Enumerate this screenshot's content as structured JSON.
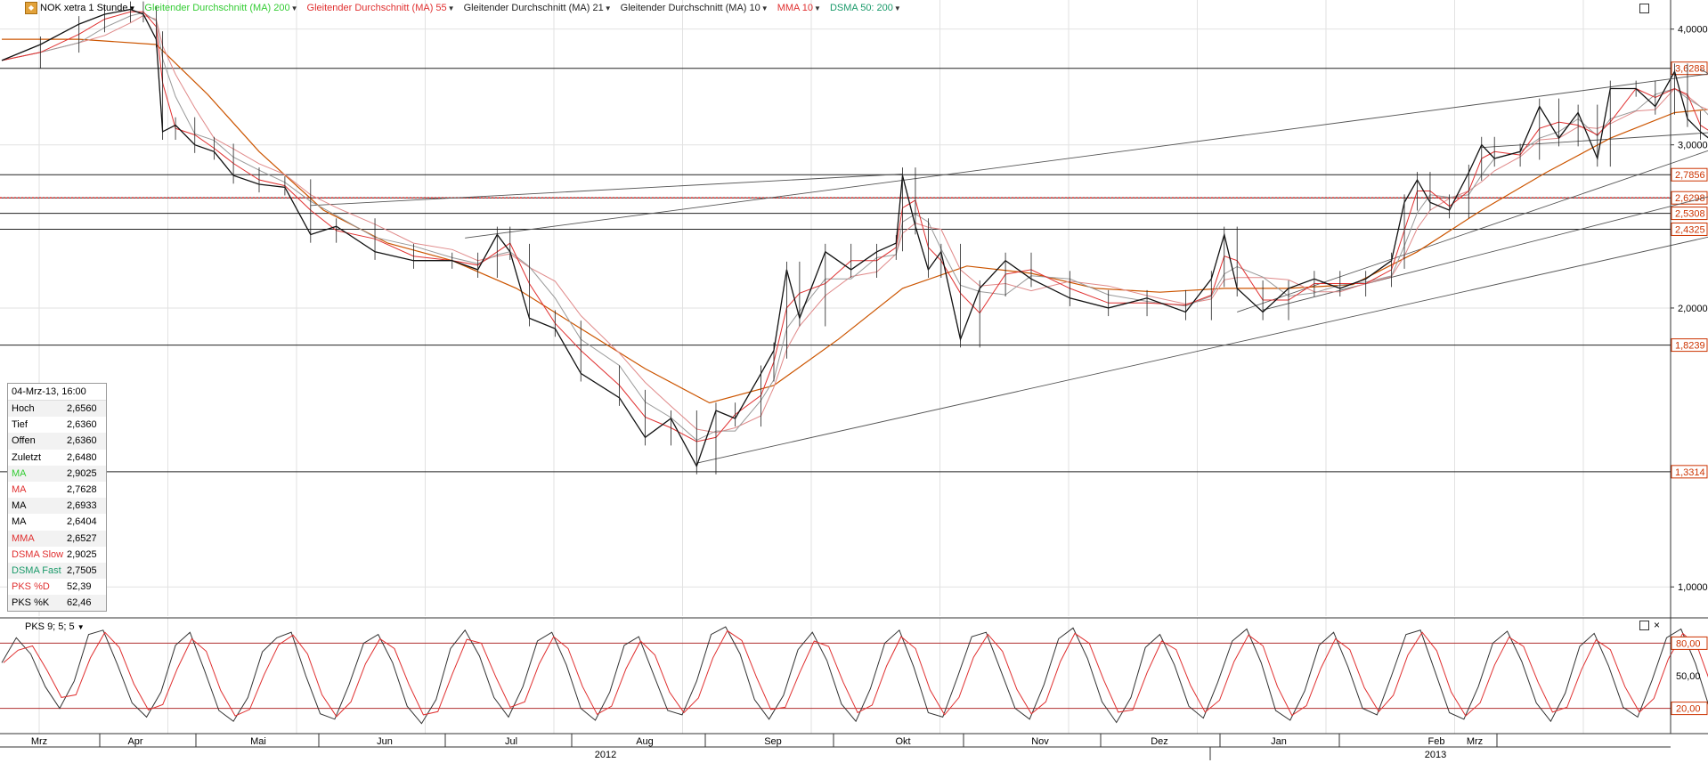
{
  "header": {
    "symbol": "NOK",
    "symbol_suffix": "xetra 1 Stunde",
    "indicators": [
      {
        "label": "Gleitender Durchschnitt (MA) 200",
        "color": "#33cc33"
      },
      {
        "label": "Gleitender Durchschnitt (MA) 55",
        "color": "#e03030"
      },
      {
        "label": "Gleitender Durchschnitt (MA) 21",
        "color": "#222222"
      },
      {
        "label": "Gleitender Durchschnitt (MA) 10",
        "color": "#222222"
      },
      {
        "label": "MMA 10",
        "color": "#e03030"
      },
      {
        "label": "DSMA 50: 200",
        "color": "#1a9a6a"
      }
    ]
  },
  "info_box": {
    "datetime": "04-Mrz-13, 16:00",
    "rows": [
      {
        "label": "Hoch",
        "value": "2,6560",
        "color": "#000000"
      },
      {
        "label": "Tief",
        "value": "2,6360",
        "color": "#000000"
      },
      {
        "label": "Offen",
        "value": "2,6360",
        "color": "#000000"
      },
      {
        "label": "Zuletzt",
        "value": "2,6480",
        "color": "#000000"
      },
      {
        "label": "MA",
        "value": "2,9025",
        "color": "#33cc33"
      },
      {
        "label": "MA",
        "value": "2,7628",
        "color": "#e03030"
      },
      {
        "label": "MA",
        "value": "2,6933",
        "color": "#000000"
      },
      {
        "label": "MA",
        "value": "2,6404",
        "color": "#000000"
      },
      {
        "label": "MMA",
        "value": "2,6527",
        "color": "#e03030"
      },
      {
        "label": "DSMA Slow",
        "value": "2,9025",
        "color": "#e03030"
      },
      {
        "label": "DSMA Fast",
        "value": "2,7505",
        "color": "#1a9a6a"
      },
      {
        "label": "PKS %D",
        "value": "52,39",
        "color": "#e03030"
      },
      {
        "label": "PKS %K",
        "value": "62,46",
        "color": "#000000"
      }
    ]
  },
  "pks_label": "PKS 9; 5; 5",
  "chart_data": [
    {
      "type": "line",
      "scale": "log",
      "y_ticks": [
        "4,0000",
        "3,0000",
        "2,0000",
        "1,0000"
      ],
      "y_tick_values": [
        4.0,
        3.0,
        2.0,
        1.0
      ],
      "ylim": [
        0.93,
        4.3
      ],
      "horizontal_levels": [
        {
          "label": "3,6288",
          "value": 3.6288
        },
        {
          "label": "2,7856",
          "value": 2.7856
        },
        {
          "label": "2,6298",
          "value": 2.6298
        },
        {
          "label": "2,5308",
          "value": 2.5308
        },
        {
          "label": "2,4325",
          "value": 2.4325
        },
        {
          "label": "1,8239",
          "value": 1.8239
        },
        {
          "label": "1,3314",
          "value": 1.3314
        }
      ],
      "current_price_level": 2.63,
      "x_labels": [
        "Mrz",
        "Apr",
        "Mai",
        "Jun",
        "Jul",
        "Aug",
        "Sep",
        "Okt",
        "Nov",
        "Dez",
        "Jan",
        "Feb",
        "Mrz"
      ],
      "year_labels": [
        "2012",
        "2013"
      ],
      "price_series": [
        {
          "x": 0.0,
          "y": 3.7
        },
        {
          "x": 0.3,
          "y": 3.85
        },
        {
          "x": 0.6,
          "y": 4.05
        },
        {
          "x": 0.8,
          "y": 4.15
        },
        {
          "x": 1.0,
          "y": 4.2
        },
        {
          "x": 1.1,
          "y": 4.15
        },
        {
          "x": 1.2,
          "y": 3.9
        },
        {
          "x": 1.25,
          "y": 3.1
        },
        {
          "x": 1.35,
          "y": 3.15
        },
        {
          "x": 1.5,
          "y": 3.0
        },
        {
          "x": 1.65,
          "y": 2.95
        },
        {
          "x": 1.8,
          "y": 2.78
        },
        {
          "x": 2.0,
          "y": 2.72
        },
        {
          "x": 2.2,
          "y": 2.7
        },
        {
          "x": 2.4,
          "y": 2.4
        },
        {
          "x": 2.6,
          "y": 2.45
        },
        {
          "x": 2.9,
          "y": 2.3
        },
        {
          "x": 3.2,
          "y": 2.25
        },
        {
          "x": 3.5,
          "y": 2.25
        },
        {
          "x": 3.7,
          "y": 2.2
        },
        {
          "x": 3.85,
          "y": 2.4
        },
        {
          "x": 3.95,
          "y": 2.3
        },
        {
          "x": 4.1,
          "y": 1.95
        },
        {
          "x": 4.3,
          "y": 1.9
        },
        {
          "x": 4.5,
          "y": 1.7
        },
        {
          "x": 4.8,
          "y": 1.6
        },
        {
          "x": 5.0,
          "y": 1.45
        },
        {
          "x": 5.2,
          "y": 1.52
        },
        {
          "x": 5.4,
          "y": 1.35
        },
        {
          "x": 5.55,
          "y": 1.55
        },
        {
          "x": 5.7,
          "y": 1.52
        },
        {
          "x": 5.9,
          "y": 1.7
        },
        {
          "x": 6.0,
          "y": 1.8
        },
        {
          "x": 6.1,
          "y": 2.2
        },
        {
          "x": 6.2,
          "y": 1.95
        },
        {
          "x": 6.4,
          "y": 2.3
        },
        {
          "x": 6.6,
          "y": 2.2
        },
        {
          "x": 6.8,
          "y": 2.3
        },
        {
          "x": 6.95,
          "y": 2.35
        },
        {
          "x": 7.0,
          "y": 2.78
        },
        {
          "x": 7.1,
          "y": 2.45
        },
        {
          "x": 7.2,
          "y": 2.2
        },
        {
          "x": 7.3,
          "y": 2.3
        },
        {
          "x": 7.45,
          "y": 1.85
        },
        {
          "x": 7.6,
          "y": 2.1
        },
        {
          "x": 7.8,
          "y": 2.25
        },
        {
          "x": 8.0,
          "y": 2.15
        },
        {
          "x": 8.3,
          "y": 2.05
        },
        {
          "x": 8.6,
          "y": 2.0
        },
        {
          "x": 8.9,
          "y": 2.05
        },
        {
          "x": 9.2,
          "y": 1.98
        },
        {
          "x": 9.4,
          "y": 2.15
        },
        {
          "x": 9.5,
          "y": 2.4
        },
        {
          "x": 9.6,
          "y": 2.1
        },
        {
          "x": 9.8,
          "y": 1.98
        },
        {
          "x": 10.0,
          "y": 2.1
        },
        {
          "x": 10.2,
          "y": 2.15
        },
        {
          "x": 10.4,
          "y": 2.1
        },
        {
          "x": 10.6,
          "y": 2.15
        },
        {
          "x": 10.8,
          "y": 2.25
        },
        {
          "x": 10.9,
          "y": 2.6
        },
        {
          "x": 11.0,
          "y": 2.75
        },
        {
          "x": 11.1,
          "y": 2.6
        },
        {
          "x": 11.25,
          "y": 2.55
        },
        {
          "x": 11.4,
          "y": 2.8
        },
        {
          "x": 11.5,
          "y": 3.0
        },
        {
          "x": 11.6,
          "y": 2.9
        },
        {
          "x": 11.8,
          "y": 2.95
        },
        {
          "x": 11.95,
          "y": 3.3
        },
        {
          "x": 12.1,
          "y": 3.05
        },
        {
          "x": 12.25,
          "y": 3.25
        },
        {
          "x": 12.4,
          "y": 2.9
        },
        {
          "x": 12.5,
          "y": 3.45
        },
        {
          "x": 12.7,
          "y": 3.45
        },
        {
          "x": 12.85,
          "y": 3.3
        },
        {
          "x": 13.0,
          "y": 3.6
        },
        {
          "x": 13.1,
          "y": 3.2
        },
        {
          "x": 13.2,
          "y": 3.1
        },
        {
          "x": 13.4,
          "y": 2.95
        },
        {
          "x": 13.6,
          "y": 3.05
        },
        {
          "x": 13.75,
          "y": 2.85
        },
        {
          "x": 13.9,
          "y": 3.1
        },
        {
          "x": 14.1,
          "y": 2.95
        },
        {
          "x": 14.25,
          "y": 2.85
        },
        {
          "x": 14.4,
          "y": 2.75
        },
        {
          "x": 14.55,
          "y": 2.8
        },
        {
          "x": 14.65,
          "y": 2.65
        },
        {
          "x": 14.75,
          "y": 2.7
        },
        {
          "x": 14.82,
          "y": 2.58
        },
        {
          "x": 14.85,
          "y": 2.64
        }
      ],
      "ma_series": [
        {
          "name": "MA 200",
          "color": "#cc5500",
          "points": [
            {
              "x": 0.0,
              "y": 3.9
            },
            {
              "x": 0.6,
              "y": 3.9
            },
            {
              "x": 1.2,
              "y": 3.85
            },
            {
              "x": 1.6,
              "y": 3.4
            },
            {
              "x": 2.0,
              "y": 2.95
            },
            {
              "x": 2.5,
              "y": 2.55
            },
            {
              "x": 3.0,
              "y": 2.35
            },
            {
              "x": 3.5,
              "y": 2.25
            },
            {
              "x": 4.0,
              "y": 2.1
            },
            {
              "x": 4.5,
              "y": 1.9
            },
            {
              "x": 5.0,
              "y": 1.72
            },
            {
              "x": 5.5,
              "y": 1.58
            },
            {
              "x": 6.0,
              "y": 1.65
            },
            {
              "x": 6.5,
              "y": 1.85
            },
            {
              "x": 7.0,
              "y": 2.1
            },
            {
              "x": 7.5,
              "y": 2.22
            },
            {
              "x": 8.0,
              "y": 2.18
            },
            {
              "x": 8.5,
              "y": 2.1
            },
            {
              "x": 9.0,
              "y": 2.08
            },
            {
              "x": 9.5,
              "y": 2.1
            },
            {
              "x": 10.0,
              "y": 2.1
            },
            {
              "x": 10.5,
              "y": 2.12
            },
            {
              "x": 11.0,
              "y": 2.3
            },
            {
              "x": 11.5,
              "y": 2.55
            },
            {
              "x": 12.0,
              "y": 2.8
            },
            {
              "x": 12.5,
              "y": 3.05
            },
            {
              "x": 13.0,
              "y": 3.25
            },
            {
              "x": 13.5,
              "y": 3.3
            },
            {
              "x": 14.0,
              "y": 3.2
            },
            {
              "x": 14.5,
              "y": 3.05
            },
            {
              "x": 14.85,
              "y": 2.92
            }
          ]
        }
      ],
      "trend_lines": [
        {
          "from": {
            "x": 2.4,
            "y": 2.58
          },
          "to": {
            "x": 7.0,
            "y": 2.79
          }
        },
        {
          "from": {
            "x": 3.6,
            "y": 2.38
          },
          "to": {
            "x": 15.0,
            "y": 3.85
          }
        },
        {
          "from": {
            "x": 5.4,
            "y": 1.36
          },
          "to": {
            "x": 15.7,
            "y": 2.84
          }
        },
        {
          "from": {
            "x": 9.6,
            "y": 1.98
          },
          "to": {
            "x": 14.8,
            "y": 3.5
          }
        },
        {
          "from": {
            "x": 9.8,
            "y": 1.99
          },
          "to": {
            "x": 15.25,
            "y": 3.1
          }
        },
        {
          "from": {
            "x": 11.5,
            "y": 2.98
          },
          "to": {
            "x": 15.35,
            "y": 3.23
          }
        },
        {
          "from": {
            "x": 13.2,
            "y": 3.62
          },
          "to": {
            "x": 14.6,
            "y": 2.85
          }
        }
      ]
    },
    {
      "type": "line",
      "title": "PKS 9; 5; 5",
      "y_ticks": [
        "80,00",
        "50,00",
        "20,00"
      ],
      "y_tick_values": [
        80,
        50,
        20
      ],
      "ylim": [
        0,
        100
      ],
      "series": [
        {
          "name": "PKS %K",
          "color": "#333333"
        },
        {
          "name": "PKS %D",
          "color": "#e03030"
        }
      ],
      "values": [
        62,
        85,
        70,
        40,
        20,
        45,
        88,
        92,
        60,
        25,
        12,
        35,
        78,
        90,
        55,
        18,
        8,
        30,
        72,
        85,
        90,
        50,
        15,
        10,
        42,
        80,
        88,
        62,
        22,
        6,
        28,
        75,
        92,
        68,
        30,
        12,
        40,
        82,
        90,
        60,
        20,
        9,
        35,
        78,
        86,
        52,
        18,
        14,
        45,
        88,
        95,
        70,
        28,
        10,
        32,
        74,
        90,
        64,
        24,
        8,
        38,
        80,
        92,
        58,
        16,
        12,
        48,
        86,
        90,
        55,
        20,
        10,
        42,
        84,
        94,
        66,
        26,
        7,
        30,
        76,
        88,
        60,
        22,
        11,
        44,
        82,
        93,
        62,
        18,
        9,
        36,
        78,
        90,
        58,
        20,
        14,
        50,
        88,
        92,
        54,
        16,
        10,
        40,
        80,
        91,
        63,
        25,
        8,
        34,
        77,
        89,
        59,
        21,
        12,
        46,
        85,
        93,
        61,
        19,
        10,
        38,
        79,
        87,
        56,
        17,
        13,
        48,
        86,
        82,
        40,
        15,
        30,
        62
      ]
    }
  ]
}
